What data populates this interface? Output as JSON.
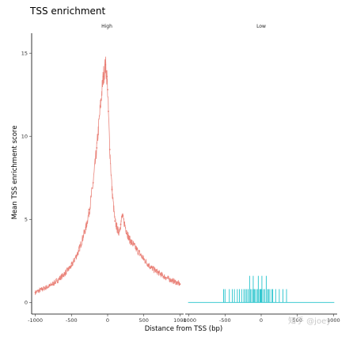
{
  "chart_data": {
    "type": "line",
    "title": "TSS enrichment",
    "xlabel": "Distance from TSS (bp)",
    "ylabel": "Mean TSS enrichment score",
    "xlim": [
      -1050,
      1050
    ],
    "ylim": [
      -0.7,
      16.2
    ],
    "x_ticks": [
      -1000,
      -500,
      0,
      500,
      1000
    ],
    "x_tick_labels": [
      "-1000",
      "-500",
      "0",
      "500",
      "1000"
    ],
    "y_ticks": [
      0,
      5,
      10,
      15
    ],
    "y_tick_labels": [
      "0",
      "5",
      "10",
      "15"
    ],
    "grid": false,
    "legend": "none",
    "facets": [
      {
        "name": "High",
        "color": "#E8796F",
        "x": [
          -1000,
          -900,
          -800,
          -700,
          -600,
          -500,
          -400,
          -300,
          -250,
          -200,
          -150,
          -100,
          -60,
          -30,
          -10,
          0,
          10,
          30,
          60,
          100,
          150,
          180,
          200,
          230,
          260,
          300,
          400,
          500,
          600,
          700,
          800,
          900,
          1000
        ],
        "y": [
          0.6,
          0.8,
          1.0,
          1.3,
          1.7,
          2.2,
          3.1,
          4.5,
          5.6,
          7.2,
          9.3,
          11.8,
          13.6,
          14.3,
          13.6,
          12.8,
          11.5,
          9.2,
          6.8,
          4.9,
          4.2,
          4.7,
          5.2,
          4.8,
          4.3,
          3.8,
          3.2,
          2.6,
          2.1,
          1.8,
          1.5,
          1.3,
          1.1
        ]
      },
      {
        "name": "Low",
        "color": "#22C3CC",
        "baseline": 0,
        "x": [
          -520,
          -500,
          -440,
          -400,
          -370,
          -330,
          -300,
          -270,
          -240,
          -220,
          -200,
          -180,
          -160,
          -150,
          -130,
          -110,
          -100,
          -90,
          -70,
          -50,
          -40,
          -20,
          -10,
          0,
          10,
          30,
          50,
          70,
          90,
          100,
          120,
          150,
          160,
          200,
          250,
          300,
          350
        ],
        "y": [
          0.8,
          0.8,
          0.8,
          0.8,
          0.8,
          0.8,
          0.8,
          0.8,
          0.8,
          0.8,
          0.8,
          0.8,
          1.6,
          0.8,
          0.8,
          1.6,
          0.8,
          0.8,
          0.8,
          0.8,
          1.6,
          0.8,
          0.8,
          0.8,
          1.6,
          0.8,
          0.8,
          1.6,
          0.8,
          0.8,
          0.8,
          0.8,
          0.8,
          0.8,
          0.8,
          0.8,
          0.8
        ]
      }
    ]
  },
  "watermark": "知乎 @joey"
}
